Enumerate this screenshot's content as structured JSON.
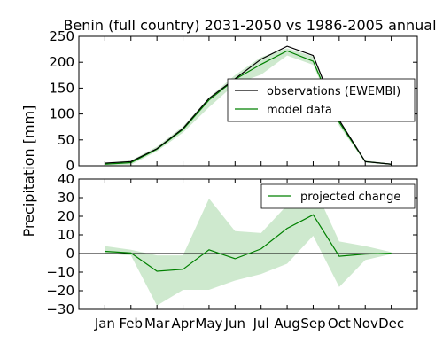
{
  "title": "Benin (full country) 2031-2050 vs 1986-2005 annual",
  "ylabel": "Precipitation [mm]",
  "chart_data": [
    {
      "type": "line",
      "categories": [
        "Jan",
        "Feb",
        "Mar",
        "Apr",
        "May",
        "Jun",
        "Jul",
        "Aug",
        "Sep",
        "Oct",
        "Nov",
        "Dec"
      ],
      "ylim": [
        0,
        250
      ],
      "yticks": [
        0,
        50,
        100,
        150,
        200,
        250
      ],
      "grid": false,
      "legend_position": "right",
      "series": [
        {
          "name": "observations (EWEMBI)",
          "color": "#000000",
          "values": [
            5,
            8,
            33,
            72,
            130,
            168,
            206,
            231,
            213,
            88,
            8,
            3
          ]
        },
        {
          "name": "model data",
          "color": "#008000",
          "values": [
            3,
            6,
            32,
            70,
            127,
            167,
            196,
            222,
            202,
            84,
            8,
            3
          ],
          "band_low": [
            1,
            2,
            28,
            64,
            113,
            158,
            176,
            213,
            195,
            77,
            6,
            2
          ],
          "band_high": [
            6,
            10,
            37,
            76,
            132,
            175,
            210,
            227,
            211,
            90,
            10,
            4
          ],
          "band_color": "#9ed49e"
        }
      ]
    },
    {
      "type": "line",
      "categories": [
        "Jan",
        "Feb",
        "Mar",
        "Apr",
        "May",
        "Jun",
        "Jul",
        "Aug",
        "Sep",
        "Oct",
        "Nov",
        "Dec"
      ],
      "ylim": [
        -30,
        40
      ],
      "yticks": [
        -30,
        -20,
        -10,
        0,
        10,
        20,
        30,
        40
      ],
      "grid": false,
      "legend_position": "top-right",
      "series": [
        {
          "name": "projected change",
          "color": "#008000",
          "values": [
            1.2,
            0.3,
            -9.5,
            -8.5,
            2.0,
            -2.8,
            2.5,
            13.5,
            20.8,
            -1.5,
            -0.3,
            0.2
          ],
          "band_low": [
            0,
            -1,
            -28,
            -19.5,
            -19.5,
            -14.5,
            -11,
            -5.5,
            9.5,
            -18,
            -3.5,
            -0.3
          ],
          "band_high": [
            4,
            2,
            -1,
            -1,
            29.5,
            12,
            11,
            26,
            37,
            6.5,
            4,
            0.8
          ],
          "band_color": "#9ed49e"
        }
      ],
      "reference_line": {
        "value": 0,
        "color": "#000000"
      }
    }
  ]
}
